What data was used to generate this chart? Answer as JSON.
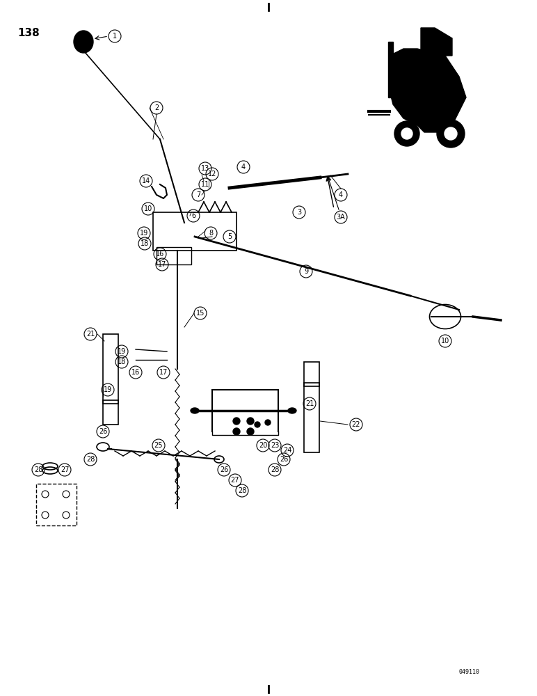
{
  "title_top": "|",
  "title_bottom": "|",
  "page_num": "138",
  "background": "#ffffff",
  "part_numbers": [
    1,
    2,
    3,
    "3A",
    4,
    5,
    6,
    7,
    8,
    9,
    10,
    11,
    12,
    13,
    14,
    15,
    16,
    17,
    18,
    19,
    20,
    21,
    22,
    23,
    24,
    25,
    26,
    27,
    28
  ],
  "figsize": [
    7.72,
    10.0
  ],
  "dpi": 100
}
